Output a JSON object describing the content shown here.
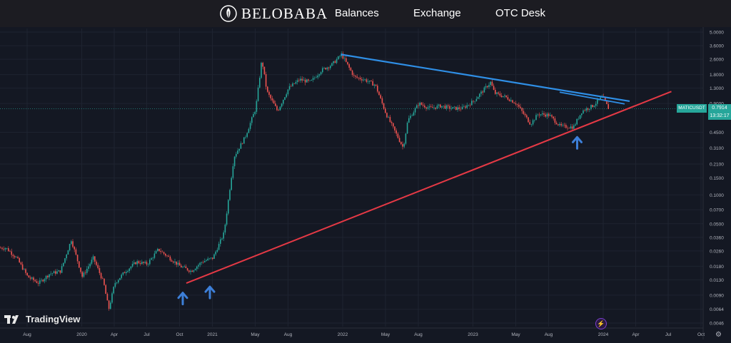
{
  "header": {
    "logo_text": "BELOBABA",
    "nav": [
      "Balances",
      "Exchange",
      "OTC Desk"
    ]
  },
  "branding": {
    "watermark": "TradingView"
  },
  "ticker": {
    "symbol": "MATICUSDT",
    "price": "0.7914",
    "countdown": "13:32:17"
  },
  "colors": {
    "background": "#141823",
    "up_candle": "#26a69a",
    "down_candle": "#ef5350",
    "support_line": "#e53945",
    "resistance_line": "#2f8fe6",
    "arrow": "#3d7fd8"
  },
  "chart_data": {
    "type": "candlestick",
    "y_scale": "log",
    "ylim": [
      0.0046,
      5.0
    ],
    "y_ticks": [
      5.0,
      3.6,
      2.6,
      1.8,
      1.3,
      0.9,
      0.45,
      0.31,
      0.21,
      0.15,
      0.1,
      0.07,
      0.05,
      0.036,
      0.026,
      0.018,
      0.013,
      0.009,
      0.0064,
      0.0046
    ],
    "y_tick_labels": [
      "5.0000",
      "3.6000",
      "2.6000",
      "1.8000",
      "1.3000",
      "0.9000",
      "0.4500",
      "0.3100",
      "0.2100",
      "0.1500",
      "0.1000",
      "0.0700",
      "0.0500",
      "0.0360",
      "0.0260",
      "0.0180",
      "0.0130",
      "0.0090",
      "0.0064",
      "0.0046"
    ],
    "x_ticks": [
      "2019-08",
      "2020-01",
      "2020-04",
      "2020-07",
      "2020-10",
      "2021-01",
      "2021-05",
      "2021-08",
      "2022-01",
      "2022-05",
      "2022-08",
      "2023-01",
      "2023-05",
      "2023-08",
      "2024-01",
      "2024-04",
      "2024-07",
      "2024-10"
    ],
    "x_tick_labels": [
      "Aug",
      "2020",
      "Apr",
      "Jul",
      "Oct",
      "2021",
      "May",
      "Aug",
      "2022",
      "May",
      "Aug",
      "2023",
      "May",
      "Aug",
      "2024",
      "Apr",
      "Jul",
      "Oct"
    ],
    "price_path": [
      [
        "2019-06-01",
        0.028
      ],
      [
        "2019-07-01",
        0.022
      ],
      [
        "2019-08-01",
        0.014
      ],
      [
        "2019-09-01",
        0.012
      ],
      [
        "2019-10-01",
        0.015
      ],
      [
        "2019-11-01",
        0.016
      ],
      [
        "2019-12-01",
        0.034
      ],
      [
        "2020-01-01",
        0.014
      ],
      [
        "2020-02-01",
        0.022
      ],
      [
        "2020-03-01",
        0.012
      ],
      [
        "2020-03-15",
        0.0064
      ],
      [
        "2020-04-01",
        0.012
      ],
      [
        "2020-05-01",
        0.016
      ],
      [
        "2020-06-01",
        0.02
      ],
      [
        "2020-07-01",
        0.019
      ],
      [
        "2020-08-01",
        0.027
      ],
      [
        "2020-09-01",
        0.022
      ],
      [
        "2020-10-01",
        0.018
      ],
      [
        "2020-11-01",
        0.016
      ],
      [
        "2020-12-01",
        0.02
      ],
      [
        "2021-01-01",
        0.022
      ],
      [
        "2021-02-01",
        0.04
      ],
      [
        "2021-03-01",
        0.25
      ],
      [
        "2021-04-01",
        0.4
      ],
      [
        "2021-05-01",
        0.8
      ],
      [
        "2021-05-18",
        2.6
      ],
      [
        "2021-06-01",
        1.2
      ],
      [
        "2021-07-01",
        0.75
      ],
      [
        "2021-08-01",
        1.3
      ],
      [
        "2021-09-01",
        1.6
      ],
      [
        "2021-10-01",
        1.5
      ],
      [
        "2021-11-01",
        2.0
      ],
      [
        "2021-12-01",
        2.3
      ],
      [
        "2021-12-27",
        2.92
      ],
      [
        "2022-01-15",
        2.2
      ],
      [
        "2022-02-01",
        1.7
      ],
      [
        "2022-03-01",
        1.6
      ],
      [
        "2022-04-01",
        1.4
      ],
      [
        "2022-05-01",
        0.7
      ],
      [
        "2022-06-18",
        0.31
      ],
      [
        "2022-07-01",
        0.6
      ],
      [
        "2022-08-01",
        0.9
      ],
      [
        "2022-09-01",
        0.8
      ],
      [
        "2022-10-01",
        0.85
      ],
      [
        "2022-11-01",
        0.8
      ],
      [
        "2022-12-01",
        0.8
      ],
      [
        "2023-01-01",
        0.95
      ],
      [
        "2023-02-18",
        1.5
      ],
      [
        "2023-03-01",
        1.15
      ],
      [
        "2023-04-01",
        1.05
      ],
      [
        "2023-05-01",
        0.9
      ],
      [
        "2023-06-10",
        0.55
      ],
      [
        "2023-07-01",
        0.7
      ],
      [
        "2023-08-01",
        0.68
      ],
      [
        "2023-09-01",
        0.52
      ],
      [
        "2023-10-08",
        0.51
      ],
      [
        "2023-11-01",
        0.75
      ],
      [
        "2023-12-01",
        0.85
      ],
      [
        "2023-12-28",
        1.05
      ],
      [
        "2024-01-15",
        0.79
      ]
    ],
    "annotations": {
      "support_line": [
        [
          "2020-10-20",
          0.012
        ],
        [
          "2024-07-10",
          1.2
        ]
      ],
      "resistance_line": [
        [
          "2021-12-27",
          2.92
        ],
        [
          "2024-03-15",
          0.95
        ]
      ],
      "resistance_short": [
        [
          "2023-09-01",
          1.18
        ],
        [
          "2024-03-01",
          0.89
        ]
      ],
      "up_arrows": [
        [
          "2020-10-10",
          0.0095
        ],
        [
          "2020-12-25",
          0.011
        ],
        [
          "2023-10-20",
          0.4
        ]
      ],
      "last_price": 0.7914
    }
  }
}
